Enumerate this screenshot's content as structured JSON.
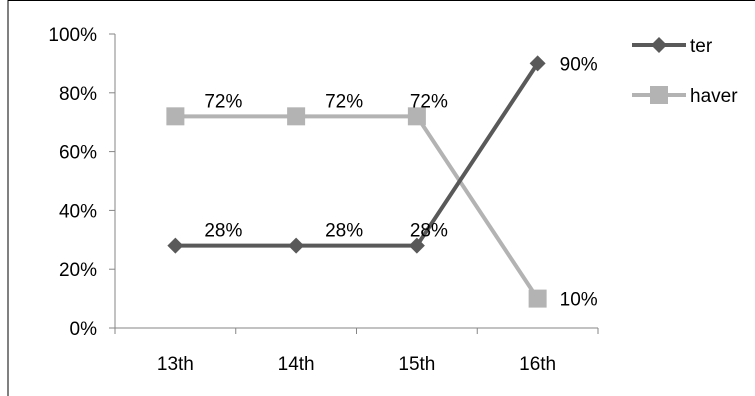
{
  "chart_data": {
    "type": "line",
    "categories": [
      "13th",
      "14th",
      "15th",
      "16th"
    ],
    "series": [
      {
        "name": "ter",
        "values": [
          28,
          28,
          28,
          90
        ],
        "labels": [
          "28%",
          "28%",
          "28%",
          "90%"
        ],
        "color": "#595959",
        "marker": "diamond"
      },
      {
        "name": "haver",
        "values": [
          72,
          72,
          72,
          10
        ],
        "labels": [
          "72%",
          "72%",
          "72%",
          "10%"
        ],
        "color": "#b3b3b3",
        "marker": "square"
      }
    ],
    "ylim": [
      0,
      100
    ],
    "yticks": [
      "0%",
      "20%",
      "40%",
      "60%",
      "80%",
      "100%"
    ],
    "legend_position": "right",
    "grid": false
  }
}
